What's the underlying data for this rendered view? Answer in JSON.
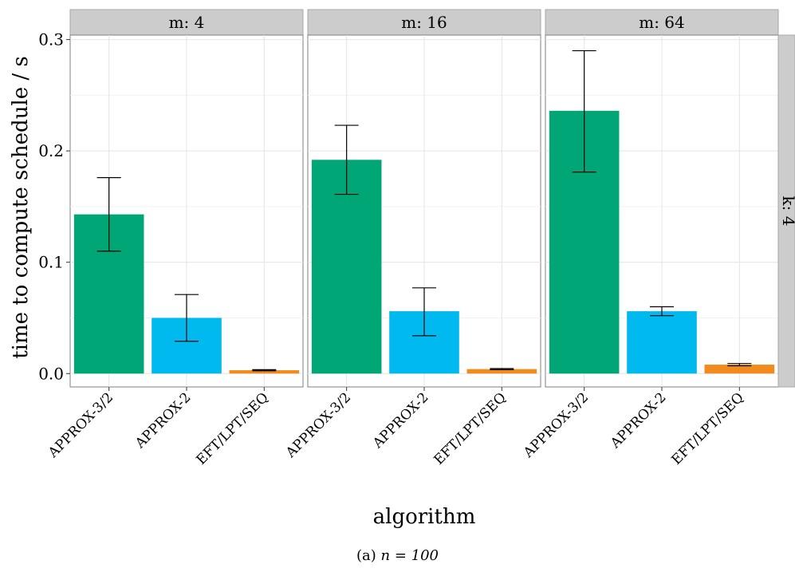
{
  "chart_data": {
    "type": "bar",
    "xlabel": "algorithm",
    "ylabel": "time to compute schedule / s",
    "ylim": [
      -0.012,
      0.304
    ],
    "yticks": [
      0.0,
      0.1,
      0.2,
      0.3
    ],
    "ytick_labels": [
      "0.0",
      "0.1",
      "0.2",
      "0.3"
    ],
    "grid": true,
    "categories": [
      "APPROX-3/2",
      "APPROX-2",
      "EFT/LPT/SEQ"
    ],
    "category_colors": [
      "#00a676",
      "#00b9ee",
      "#f28a1c"
    ],
    "row_strip": "k: 4",
    "panels": [
      {
        "strip": "m: 4",
        "values": [
          0.143,
          0.05,
          0.003
        ],
        "err_low": [
          0.11,
          0.029,
          0.0025
        ],
        "err_high": [
          0.176,
          0.071,
          0.0035
        ]
      },
      {
        "strip": "m: 16",
        "values": [
          0.192,
          0.056,
          0.004
        ],
        "err_low": [
          0.161,
          0.034,
          0.0035
        ],
        "err_high": [
          0.223,
          0.077,
          0.0045
        ]
      },
      {
        "strip": "m: 64",
        "values": [
          0.236,
          0.056,
          0.008
        ],
        "err_low": [
          0.181,
          0.052,
          0.007
        ],
        "err_high": [
          0.29,
          0.06,
          0.009
        ]
      }
    ]
  },
  "caption": {
    "label": "(a)",
    "math": "n = 100"
  }
}
